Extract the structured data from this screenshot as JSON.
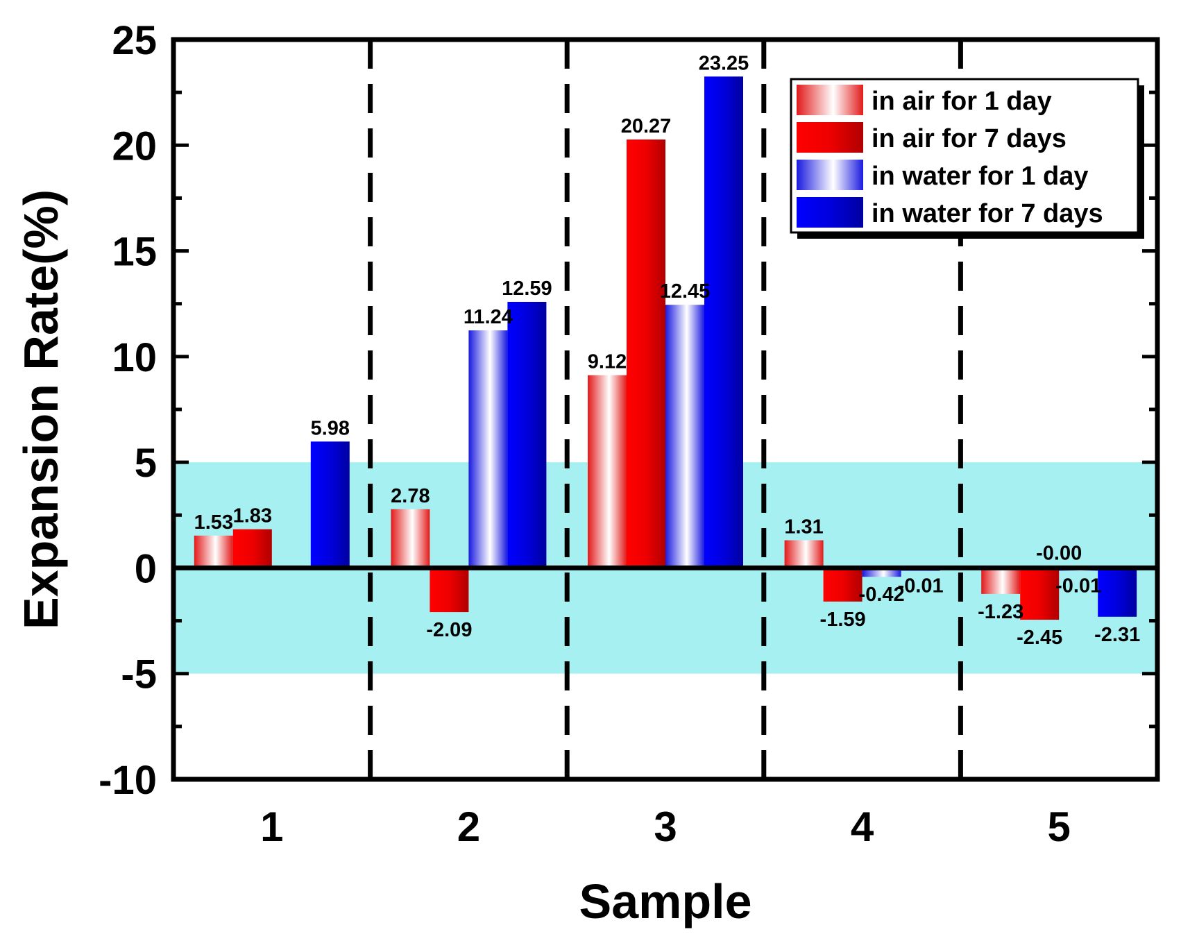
{
  "chart_data": {
    "type": "bar",
    "xlabel": "Sample",
    "ylabel": "Expansion Rate(%)",
    "ylim": [
      -10,
      25
    ],
    "yticks": [
      "-10",
      "-5",
      "0",
      "5",
      "10",
      "15",
      "20",
      "25"
    ],
    "categories": [
      "1",
      "2",
      "3",
      "4",
      "5"
    ],
    "highlight_band": [
      -5,
      5
    ],
    "highlight_color": "#a6f0f2",
    "grid": false,
    "legend_position": "top-right",
    "series": [
      {
        "name": "in air for 1 day",
        "color": "#e00000",
        "style": "gradient",
        "values": [
          1.53,
          2.78,
          9.12,
          1.31,
          -1.23
        ],
        "labels": [
          "1.53",
          "2.78",
          "9.12",
          "1.31",
          "-1.23"
        ]
      },
      {
        "name": "in air for 7 days",
        "color": "#e00000",
        "style": "solid",
        "values": [
          1.83,
          -2.09,
          20.27,
          -1.59,
          -2.45
        ],
        "labels": [
          "1.83",
          "-2.09",
          "20.27",
          "-1.59",
          "-2.45"
        ]
      },
      {
        "name": "in water for 1 day",
        "color": "#0000d0",
        "style": "gradient",
        "values": [
          null,
          11.24,
          12.45,
          -0.42,
          -0.01
        ],
        "labels": [
          "",
          "11.24",
          "12.45",
          "-0.42",
          "-0.01"
        ]
      },
      {
        "name": "in water for 7 days",
        "color": "#0000d0",
        "style": "solid",
        "values": [
          5.98,
          12.59,
          23.25,
          -0.01,
          -2.31
        ],
        "labels": [
          "5.98",
          "12.59",
          "23.25",
          "-0.01",
          "-2.31"
        ]
      }
    ],
    "extra_labels": [
      "-0.00"
    ]
  }
}
